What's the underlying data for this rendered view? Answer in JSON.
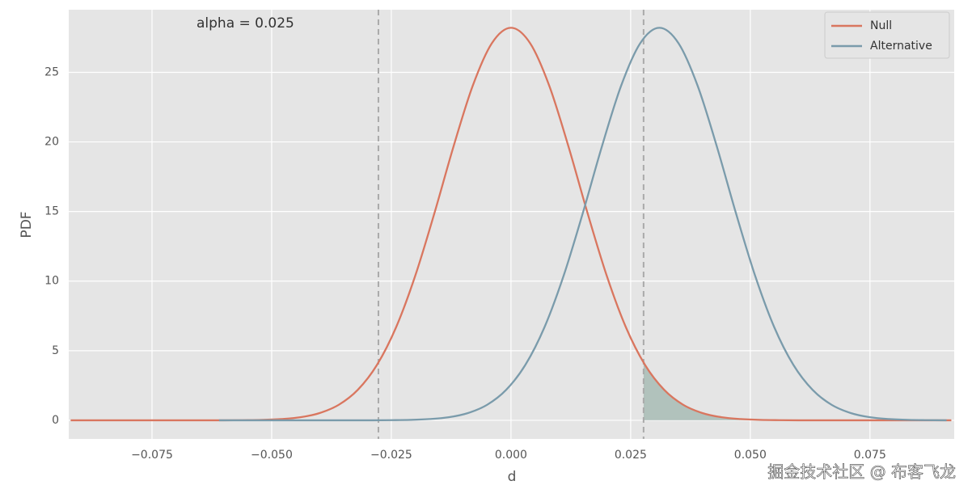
{
  "chart_data": {
    "type": "line",
    "annotation": "alpha = 0.025",
    "xlabel": "d",
    "ylabel": "PDF",
    "xlim": [
      -0.0924,
      0.0926
    ],
    "ylim": [
      -1.34,
      29.5
    ],
    "xticks": [
      {
        "value": -0.075,
        "label": "−0.075"
      },
      {
        "value": -0.05,
        "label": "−0.050"
      },
      {
        "value": -0.025,
        "label": "−0.025"
      },
      {
        "value": 0,
        "label": "0.000"
      },
      {
        "value": 0.025,
        "label": "0.025"
      },
      {
        "value": 0.05,
        "label": "0.050"
      },
      {
        "value": 0.075,
        "label": "0.075"
      }
    ],
    "yticks": [
      0,
      5,
      10,
      15,
      20,
      25
    ],
    "grid": true,
    "legend": "upper right",
    "vlines": [
      -0.0277,
      0.0277
    ],
    "series": [
      {
        "name": "Null",
        "color": "#d9765f",
        "x": [
          -0.092,
          -0.088,
          -0.084,
          -0.08,
          -0.076,
          -0.072,
          -0.068,
          -0.064,
          -0.06,
          -0.056,
          -0.052,
          -0.048,
          -0.044,
          -0.04,
          -0.036,
          -0.032,
          -0.028,
          -0.024,
          -0.02,
          -0.016,
          -0.012,
          -0.008,
          -0.004,
          0,
          0.004,
          0.008,
          0.012,
          0.016,
          0.02,
          0.024,
          0.028,
          0.032,
          0.036,
          0.04,
          0.044,
          0.048,
          0.052,
          0.056,
          0.06,
          0.064,
          0.068,
          0.072,
          0.076,
          0.08,
          0.084,
          0.088,
          0.092
        ],
        "values": [
          0,
          0,
          0,
          0,
          0,
          0,
          0,
          0,
          0,
          0.01,
          0.03,
          0.09,
          0.22,
          0.52,
          1.11,
          2.19,
          3.98,
          6.69,
          10.39,
          14.88,
          19.68,
          24.03,
          27.09,
          28.2,
          27.09,
          24.03,
          19.68,
          14.88,
          10.39,
          6.69,
          3.98,
          2.19,
          1.11,
          0.52,
          0.22,
          0.09,
          0.03,
          0.01,
          0,
          0,
          0,
          0,
          0,
          0,
          0,
          0,
          0
        ]
      },
      {
        "name": "Alternative",
        "color": "#7a9bab",
        "x": [
          -0.061,
          -0.057,
          -0.053,
          -0.049,
          -0.045,
          -0.041,
          -0.037,
          -0.033,
          -0.029,
          -0.025,
          -0.021,
          -0.017,
          -0.013,
          -0.009,
          -0.005,
          -0.001,
          0.003,
          0.007,
          0.011,
          0.015,
          0.019,
          0.023,
          0.027,
          0.031,
          0.035,
          0.039,
          0.043,
          0.047,
          0.051,
          0.055,
          0.059,
          0.063,
          0.067,
          0.071,
          0.075,
          0.079,
          0.083,
          0.087,
          0.091
        ],
        "values": [
          0,
          0,
          0,
          0,
          0,
          0,
          0,
          0,
          0,
          0.01,
          0.03,
          0.09,
          0.22,
          0.52,
          1.11,
          2.19,
          3.98,
          6.69,
          10.39,
          14.88,
          19.68,
          24.03,
          27.09,
          28.2,
          27.09,
          24.03,
          19.68,
          14.88,
          10.39,
          6.69,
          3.98,
          2.19,
          1.11,
          0.52,
          0.22,
          0.09,
          0.03,
          0.01,
          0
        ]
      }
    ]
  },
  "watermark": "掘金技术社区 @ 布客飞龙"
}
